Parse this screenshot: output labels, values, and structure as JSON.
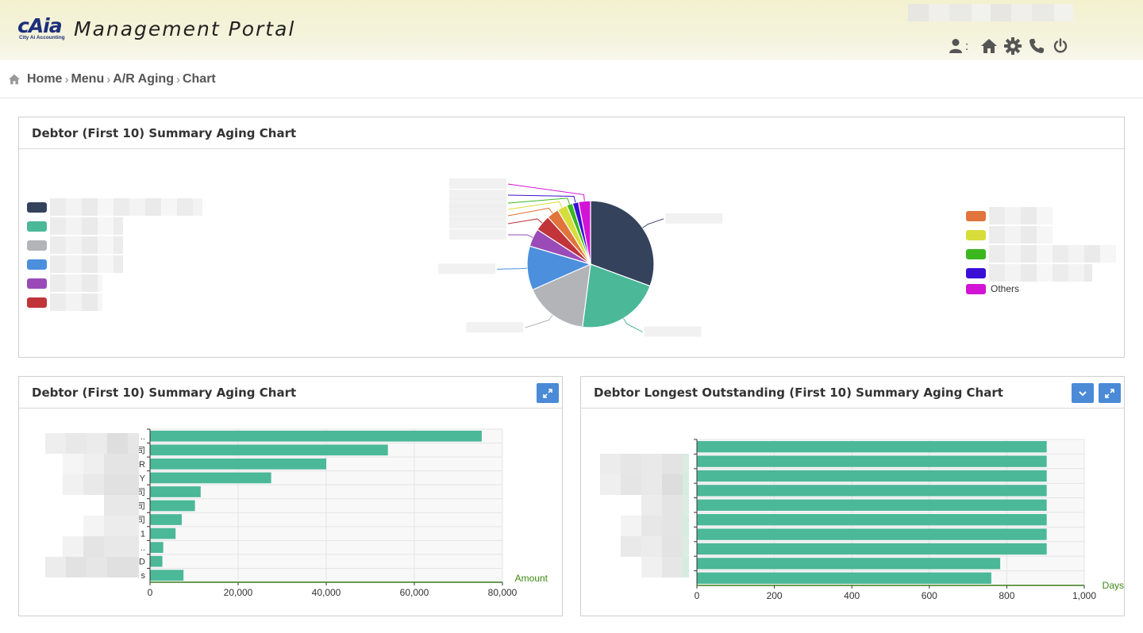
{
  "header": {
    "logo_text": "cAia",
    "logo_subtext": "City Ai Accounting",
    "title": "Management Portal",
    "user_separator": ":",
    "icons": [
      "user-icon",
      "home-icon",
      "gear-icon",
      "phone-icon",
      "power-icon"
    ]
  },
  "breadcrumb": {
    "items": [
      "Home",
      "Menu",
      "A/R Aging",
      "Chart"
    ]
  },
  "pie_panel": {
    "title": "Debtor (First 10) Summary Aging Chart",
    "legend_right_last": "Others"
  },
  "bar_panel": {
    "title": "Debtor (First 10) Summary Aging Chart"
  },
  "days_panel": {
    "title": "Debtor Longest Outstanding (First 10) Summary Aging Chart"
  },
  "colors": {
    "bar": "#4bb898",
    "button": "#4a8ad6",
    "pie": [
      "#34425c",
      "#4bb898",
      "#b2b4b8",
      "#4c8fdc",
      "#9a4bb8",
      "#c0343a",
      "#e0743a",
      "#d7dd3a",
      "#3bb81f",
      "#3a10d6",
      "#d313d6"
    ]
  },
  "chart_data": [
    {
      "type": "pie",
      "title": "Debtor (First 10) Summary Aging Chart",
      "slices": [
        {
          "name": "",
          "value": 30
        },
        {
          "name": "",
          "value": 21
        },
        {
          "name": "",
          "value": 16
        },
        {
          "name": "",
          "value": 11
        },
        {
          "name": "",
          "value": 4.5
        },
        {
          "name": "",
          "value": 4
        },
        {
          "name": "",
          "value": 3
        },
        {
          "name": "",
          "value": 2.5
        },
        {
          "name": "",
          "value": 1.5
        },
        {
          "name": "",
          "value": 1.5
        },
        {
          "name": "Others",
          "value": 3
        }
      ],
      "legend": "left-and-right"
    },
    {
      "type": "bar",
      "orientation": "horizontal",
      "title": "Debtor (First 10) Summary Aging Chart",
      "xlabel": "Amount",
      "xlim": [
        0,
        80000
      ],
      "xticks": [
        "0",
        "20,000",
        "40,000",
        "60,000",
        "80,000"
      ],
      "values": [
        75300,
        54000,
        40000,
        27500,
        11500,
        10200,
        7200,
        5800,
        3000,
        2800,
        7600
      ],
      "category_tail_labels": [
        "..",
        "司",
        "R",
        "Y",
        "司",
        "司",
        "司",
        "1",
        "..",
        "D",
        "s"
      ],
      "grid": true
    },
    {
      "type": "bar",
      "orientation": "horizontal",
      "title": "Debtor Longest Outstanding (First 10) Summary Aging Chart",
      "xlabel": "Days",
      "xlim": [
        0,
        1000
      ],
      "xticks": [
        "0",
        "200",
        "400",
        "600",
        "800",
        "1,000"
      ],
      "values": [
        903,
        903,
        903,
        903,
        903,
        903,
        903,
        903,
        783,
        760
      ],
      "grid": true
    }
  ]
}
